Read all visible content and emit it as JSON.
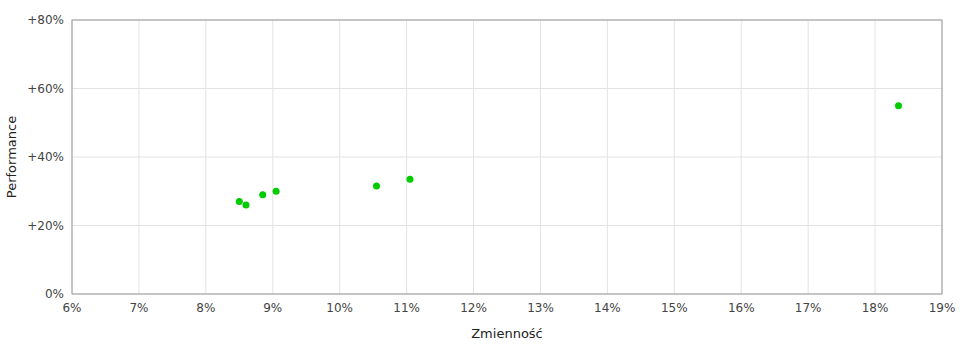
{
  "chart_data": {
    "type": "scatter",
    "xlabel": "Zmienność",
    "ylabel": "Performance",
    "x": [
      8.5,
      8.6,
      8.85,
      9.05,
      10.55,
      11.05,
      18.35
    ],
    "values": [
      27.0,
      26.0,
      29.0,
      30.0,
      31.5,
      33.5,
      55.0
    ],
    "color": "#00cc00",
    "xlim": [
      6,
      19
    ],
    "ylim": [
      0,
      80
    ],
    "xticks": [
      {
        "value": 6,
        "label": "6%"
      },
      {
        "value": 7,
        "label": "7%"
      },
      {
        "value": 8,
        "label": "8%"
      },
      {
        "value": 9,
        "label": "9%"
      },
      {
        "value": 10,
        "label": "10%"
      },
      {
        "value": 11,
        "label": "11%"
      },
      {
        "value": 12,
        "label": "12%"
      },
      {
        "value": 13,
        "label": "13%"
      },
      {
        "value": 14,
        "label": "14%"
      },
      {
        "value": 15,
        "label": "15%"
      },
      {
        "value": 16,
        "label": "16%"
      },
      {
        "value": 17,
        "label": "17%"
      },
      {
        "value": 18,
        "label": "18%"
      },
      {
        "value": 19,
        "label": "19%"
      }
    ],
    "yticks": [
      {
        "value": 0,
        "label": "0%"
      },
      {
        "value": 20,
        "label": "+20%"
      },
      {
        "value": 40,
        "label": "+40%"
      },
      {
        "value": 60,
        "label": "+60%"
      },
      {
        "value": 80,
        "label": "+80%"
      }
    ],
    "grid": true
  }
}
